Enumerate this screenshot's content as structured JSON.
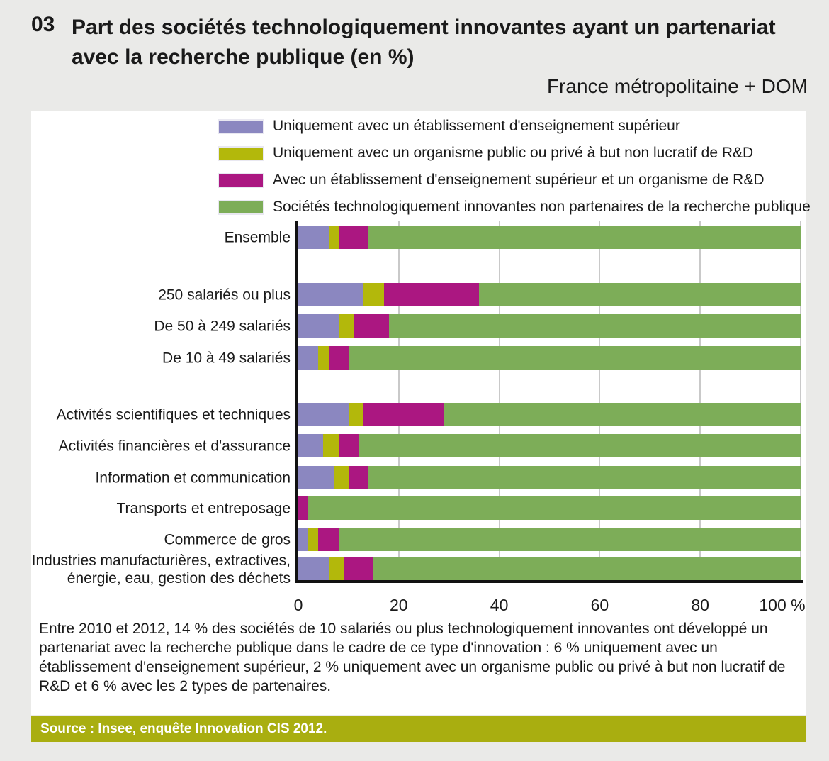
{
  "header": {
    "figure_number": "03",
    "title_line1": "Part des sociétés technologiquement innovantes ayant un partenariat",
    "title_line2": "avec la recherche publique (en %)",
    "subtitle": "France métropolitaine + DOM"
  },
  "chart_data": {
    "type": "bar",
    "orientation": "horizontal",
    "stacked": true,
    "unit": "%",
    "xlim": [
      0,
      100
    ],
    "grid": true,
    "legend_position": "top",
    "x_ticks": [
      {
        "label": "0",
        "value": 0
      },
      {
        "label": "20",
        "value": 20
      },
      {
        "label": "40",
        "value": 40
      },
      {
        "label": "60",
        "value": 60
      },
      {
        "label": "80",
        "value": 80
      },
      {
        "label": "100 %",
        "value": 100
      }
    ],
    "categories": [
      "Ensemble",
      "250 salariés ou plus",
      "De 50 à 249 salariés",
      "De 10 à 49 salariés",
      "Activités scientifiques et techniques",
      "Activités financières et d'assurance",
      "Information et communication",
      "Transports et entreposage",
      "Commerce de gros",
      "Industries manufacturières, extractives, énergie, eau, gestion des déchets"
    ],
    "series": [
      {
        "name": "Uniquement avec un établissement d'enseignement supérieur",
        "color": "#8b87c0",
        "values": [
          6,
          13,
          8,
          4,
          10,
          5,
          7,
          0,
          2,
          6
        ]
      },
      {
        "name": "Uniquement avec un organisme public ou privé à but non lucratif de R&D",
        "color": "#b3b80b",
        "values": [
          2,
          4,
          3,
          2,
          3,
          3,
          3,
          0,
          2,
          3
        ]
      },
      {
        "name": "Avec un établissement d'enseignement supérieur et un organisme de R&D",
        "color": "#ab1781",
        "values": [
          6,
          19,
          7,
          4,
          16,
          4,
          4,
          2,
          4,
          6
        ]
      },
      {
        "name": "Sociétés technologiquement innovantes non partenaires de la recherche publique",
        "color": "#7dad58",
        "values": [
          86,
          64,
          82,
          90,
          71,
          88,
          86,
          98,
          92,
          85
        ]
      }
    ]
  },
  "caption": "Entre 2010 et 2012, 14 % des sociétés de 10 salariés ou plus technologiquement innovantes ont développé un partenariat avec la recherche publique dans le cadre de ce type d'innovation : 6 % uniquement avec un établissement d'enseignement supérieur, 2 % uniquement avec un organisme public ou privé à but non lucratif de R&D et 6 % avec les 2 types de partenaires.",
  "source": "Source : Insee, enquête Innovation CIS 2012."
}
